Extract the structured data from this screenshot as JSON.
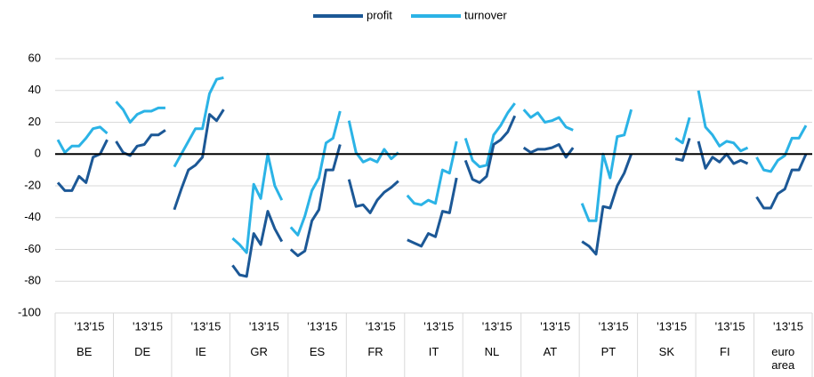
{
  "chart_data": {
    "type": "line",
    "categories": [
      "BE",
      "DE",
      "IE",
      "GR",
      "ES",
      "FR",
      "IT",
      "NL",
      "AT",
      "PT",
      "SK",
      "FI",
      "euro area"
    ],
    "period_labels": [
      "'13",
      "'15"
    ],
    "series": [
      {
        "name": "profit",
        "color": "#1c5896",
        "values": [
          [
            -18,
            -23,
            -23,
            -14,
            -18,
            -2,
            0,
            9
          ],
          [
            8,
            1,
            -1,
            5,
            6,
            12,
            12,
            15
          ],
          [
            -35,
            -22,
            -10,
            -7,
            -2,
            25,
            21,
            28
          ],
          [
            -70,
            -76,
            -77,
            -50,
            -57,
            -36,
            -47,
            -55
          ],
          [
            -60,
            -64,
            -61,
            -42,
            -35,
            -10,
            -10,
            6
          ],
          [
            -16,
            -33,
            -32,
            -37,
            -29,
            -24,
            -21,
            -17
          ],
          [
            -54,
            -56,
            -58,
            -50,
            -52,
            -36,
            -37,
            -15
          ],
          [
            -4,
            -16,
            -18,
            -14,
            6,
            9,
            14,
            24
          ],
          [
            4,
            1,
            3,
            3,
            4,
            6,
            -2,
            4
          ],
          [
            -55,
            -58,
            -63,
            -33,
            -34,
            -20,
            -12,
            0
          ],
          [
            null,
            null,
            null,
            null,
            null,
            -3,
            -4,
            10
          ],
          [
            8,
            -9,
            -2,
            -5,
            0,
            -6,
            -4,
            -6
          ],
          [
            -27,
            -34,
            -34,
            -25,
            -22,
            -10,
            -10,
            0
          ]
        ]
      },
      {
        "name": "turnover",
        "color": "#2bb3e6",
        "values": [
          [
            9,
            1,
            5,
            5,
            10,
            16,
            17,
            13
          ],
          [
            33,
            28,
            20,
            25,
            27,
            27,
            29,
            29
          ],
          [
            -8,
            0,
            8,
            16,
            16,
            38,
            47,
            48
          ],
          [
            -53,
            -57,
            -62,
            -19,
            -28,
            0,
            -20,
            -29
          ],
          [
            -46,
            -51,
            -39,
            -23,
            -15,
            7,
            10,
            27
          ],
          [
            21,
            1,
            -5,
            -3,
            -5,
            3,
            -3,
            1
          ],
          [
            -26,
            -31,
            -32,
            -29,
            -31,
            -10,
            -12,
            8
          ],
          [
            10,
            -4,
            -8,
            -7,
            12,
            18,
            26,
            32
          ],
          [
            28,
            23,
            26,
            20,
            21,
            23,
            17,
            15
          ],
          [
            -31,
            -42,
            -42,
            0,
            -15,
            11,
            12,
            28
          ],
          [
            null,
            null,
            null,
            null,
            null,
            10,
            7,
            23
          ],
          [
            40,
            17,
            12,
            5,
            8,
            7,
            2,
            4
          ],
          [
            -2,
            -10,
            -11,
            -4,
            -1,
            10,
            10,
            18
          ]
        ]
      }
    ],
    "ylim": [
      -100,
      60
    ],
    "yticks": [
      -100,
      -80,
      -60,
      -40,
      -20,
      0,
      20,
      40,
      60
    ],
    "grid": true,
    "zero_line": true,
    "legend": "top"
  }
}
